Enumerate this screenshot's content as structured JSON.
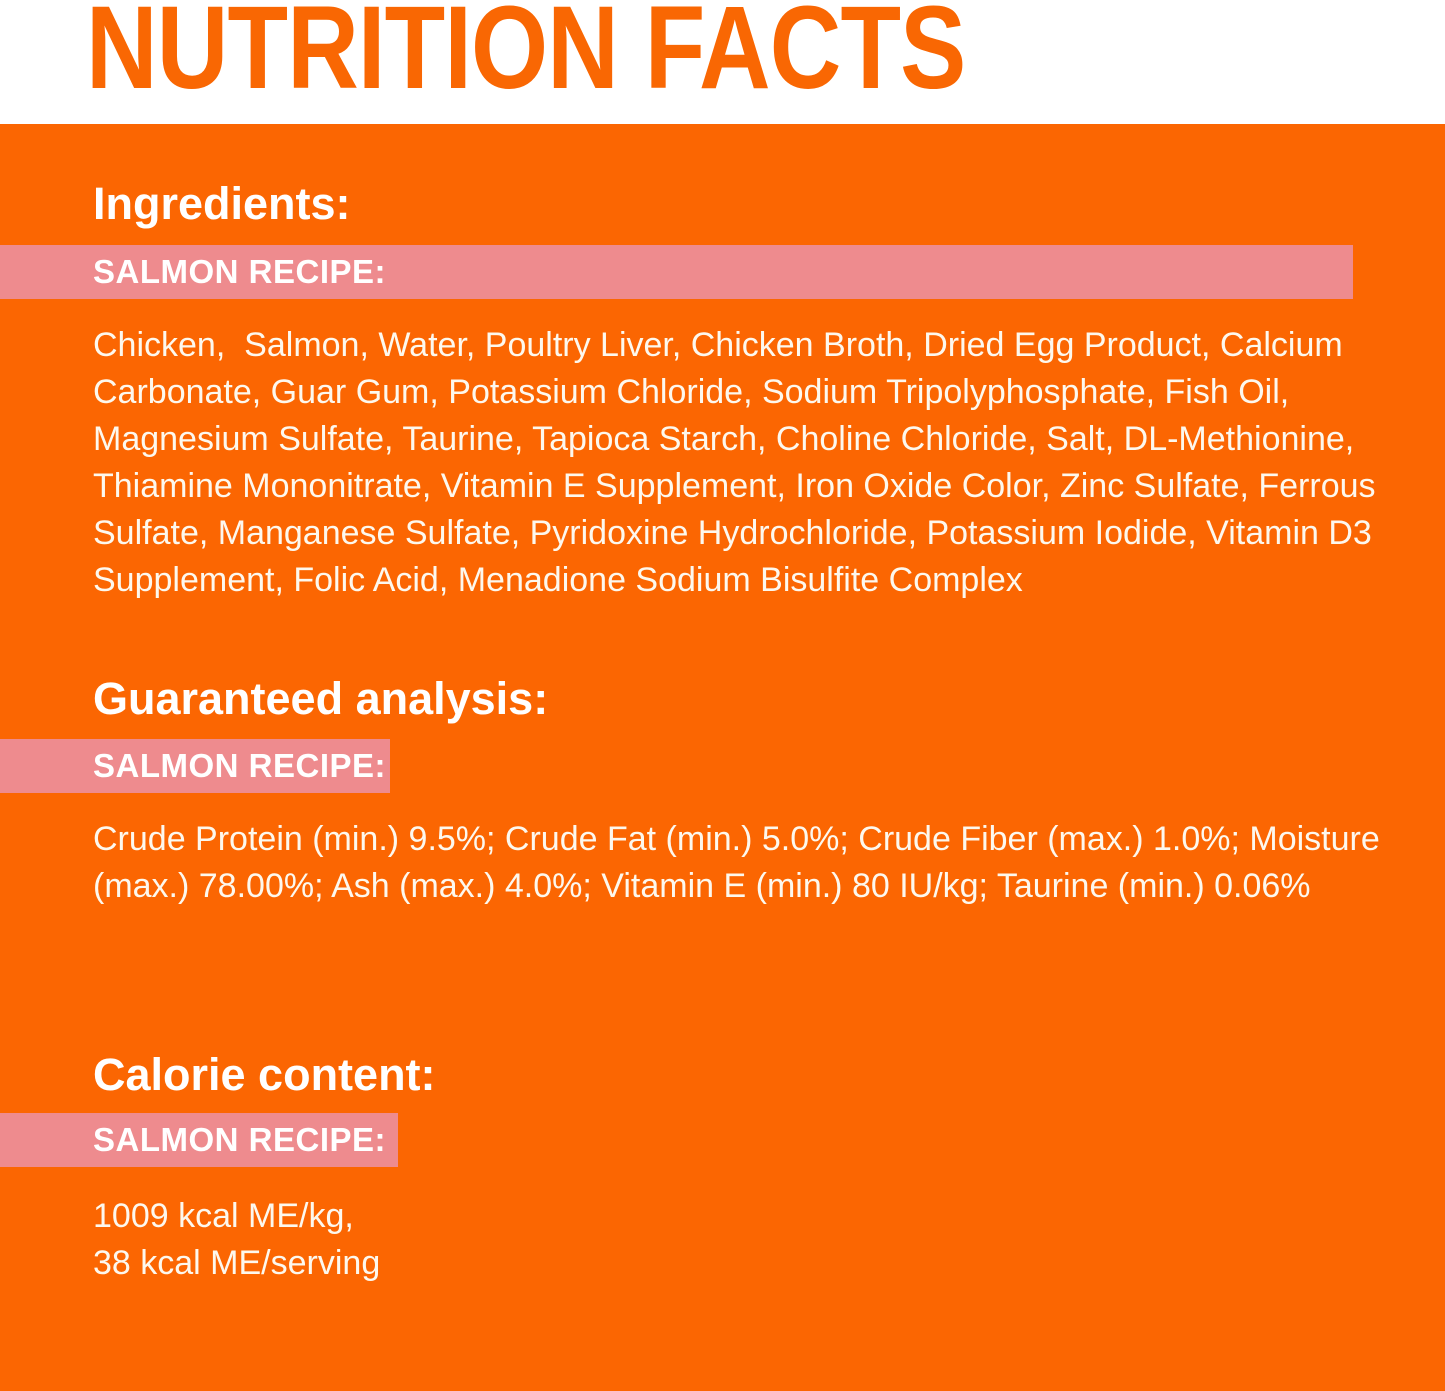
{
  "page": {
    "title": "NUTRITION FACTS"
  },
  "colors": {
    "background_orange": "#FB6602",
    "title_orange": "#F96703",
    "banner_pink": "#EE8B8E",
    "text_white": "#FFFFFF"
  },
  "sections": {
    "ingredients": {
      "heading": "Ingredients:",
      "recipe_label": "SALMON RECIPE:",
      "body": "Chicken,  Salmon, Water, Poultry Liver, Chicken Broth, Dried Egg Product, Calcium\nCarbonate, Guar Gum, Potassium Chloride, Sodium Tripolyphosphate, Fish Oil,\nMagnesium Sulfate, Taurine, Tapioca Starch, Choline Chloride, Salt, DL-Methionine,\nThiamine Mononitrate, Vitamin E Supplement, Iron Oxide Color, Zinc Sulfate, Ferrous\nSulfate, Manganese Sulfate, Pyridoxine Hydrochloride, Potassium Iodide, Vitamin D3\nSupplement, Folic Acid, Menadione Sodium Bisulfite Complex"
    },
    "analysis": {
      "heading": "Guaranteed analysis:",
      "recipe_label": "SALMON RECIPE:",
      "body": "Crude Protein (min.) 9.5%; Crude Fat (min.) 5.0%; Crude Fiber (max.) 1.0%; Moisture\n(max.) 78.00%; Ash (max.) 4.0%; Vitamin E (min.) 80 IU/kg; Taurine (min.) 0.06%"
    },
    "calories": {
      "heading": "Calorie content:",
      "recipe_label": "SALMON RECIPE:",
      "body": "1009 kcal ME/kg,\n38 kcal ME/serving"
    }
  }
}
